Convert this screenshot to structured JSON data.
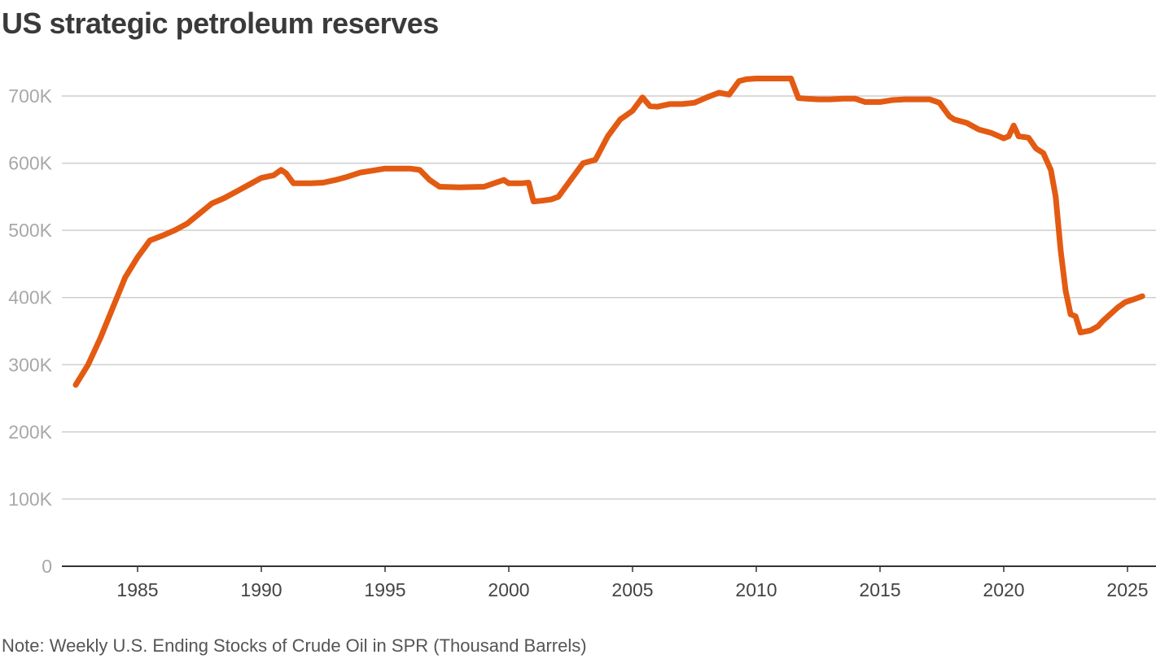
{
  "chart_data": {
    "type": "line",
    "title": "US strategic petroleum reserves",
    "note": "Note: Weekly U.S. Ending Stocks of Crude Oil in SPR (Thousand Barrels)",
    "xlabel": "",
    "ylabel": "",
    "xlim": [
      1981.6,
      2026.0
    ],
    "ylim": [
      0,
      730000
    ],
    "y_ticks": [
      0,
      100000,
      200000,
      300000,
      400000,
      500000,
      600000,
      700000
    ],
    "y_tick_labels": [
      "0",
      "100K",
      "200K",
      "300K",
      "400K",
      "500K",
      "600K",
      "700K"
    ],
    "x_ticks": [
      1985,
      1990,
      1995,
      2000,
      2005,
      2010,
      2015,
      2020,
      2025
    ],
    "x_tick_labels": [
      "1985",
      "1990",
      "1995",
      "2000",
      "2005",
      "2010",
      "2015",
      "2020",
      "2025"
    ],
    "grid": true,
    "legend": "none",
    "series": [
      {
        "color": "#e35a12",
        "x": [
          1982.5,
          1983.0,
          1983.5,
          1984.0,
          1984.5,
          1985.0,
          1985.5,
          1986.0,
          1986.5,
          1987.0,
          1987.5,
          1988.0,
          1988.5,
          1989.0,
          1989.5,
          1990.0,
          1990.5,
          1990.8,
          1991.0,
          1991.3,
          1992.0,
          1992.5,
          1993.0,
          1993.5,
          1994.0,
          1994.5,
          1995.0,
          1995.5,
          1996.0,
          1996.4,
          1996.8,
          1997.2,
          1998.0,
          1999.0,
          1999.4,
          1999.8,
          2000.0,
          2000.5,
          2000.8,
          2001.0,
          2001.3,
          2001.7,
          2002.0,
          2002.5,
          2003.0,
          2003.5,
          2004.0,
          2004.5,
          2005.0,
          2005.4,
          2005.7,
          2006.0,
          2006.5,
          2007.0,
          2007.5,
          2008.0,
          2008.5,
          2008.9,
          2009.3,
          2009.6,
          2010.0,
          2010.5,
          2011.0,
          2011.4,
          2011.7,
          2012.0,
          2012.5,
          2013.0,
          2013.5,
          2014.0,
          2014.4,
          2014.8,
          2015.0,
          2015.5,
          2016.0,
          2016.5,
          2017.0,
          2017.4,
          2017.8,
          2018.0,
          2018.5,
          2019.0,
          2019.5,
          2020.0,
          2020.2,
          2020.4,
          2020.6,
          2021.0,
          2021.3,
          2021.6,
          2021.9,
          2022.1,
          2022.3,
          2022.5,
          2022.7,
          2022.9,
          2023.1,
          2023.5,
          2023.8,
          2024.0,
          2024.3,
          2024.6,
          2024.9,
          2025.3,
          2025.6
        ],
        "values": [
          270000,
          300000,
          340000,
          385000,
          430000,
          460000,
          485000,
          492000,
          500000,
          510000,
          525000,
          540000,
          548000,
          558000,
          568000,
          578000,
          582000,
          590000,
          585000,
          570000,
          570000,
          571000,
          575000,
          580000,
          586000,
          589000,
          592000,
          592000,
          592000,
          590000,
          575000,
          565000,
          564000,
          565000,
          570000,
          575000,
          570000,
          570000,
          571000,
          543000,
          544000,
          546000,
          550000,
          575000,
          600000,
          605000,
          640000,
          665000,
          678000,
          698000,
          685000,
          684000,
          688000,
          688000,
          690000,
          698000,
          705000,
          702000,
          722000,
          725000,
          726000,
          726000,
          726000,
          726000,
          697000,
          696000,
          695000,
          695000,
          696000,
          696000,
          691000,
          691000,
          691000,
          694000,
          695000,
          695000,
          695000,
          690000,
          670000,
          665000,
          660000,
          650000,
          645000,
          637000,
          640000,
          656000,
          640000,
          638000,
          622000,
          615000,
          590000,
          550000,
          470000,
          410000,
          375000,
          372000,
          348000,
          351000,
          357000,
          365000,
          375000,
          385000,
          393000,
          398000,
          402000
        ]
      }
    ]
  }
}
